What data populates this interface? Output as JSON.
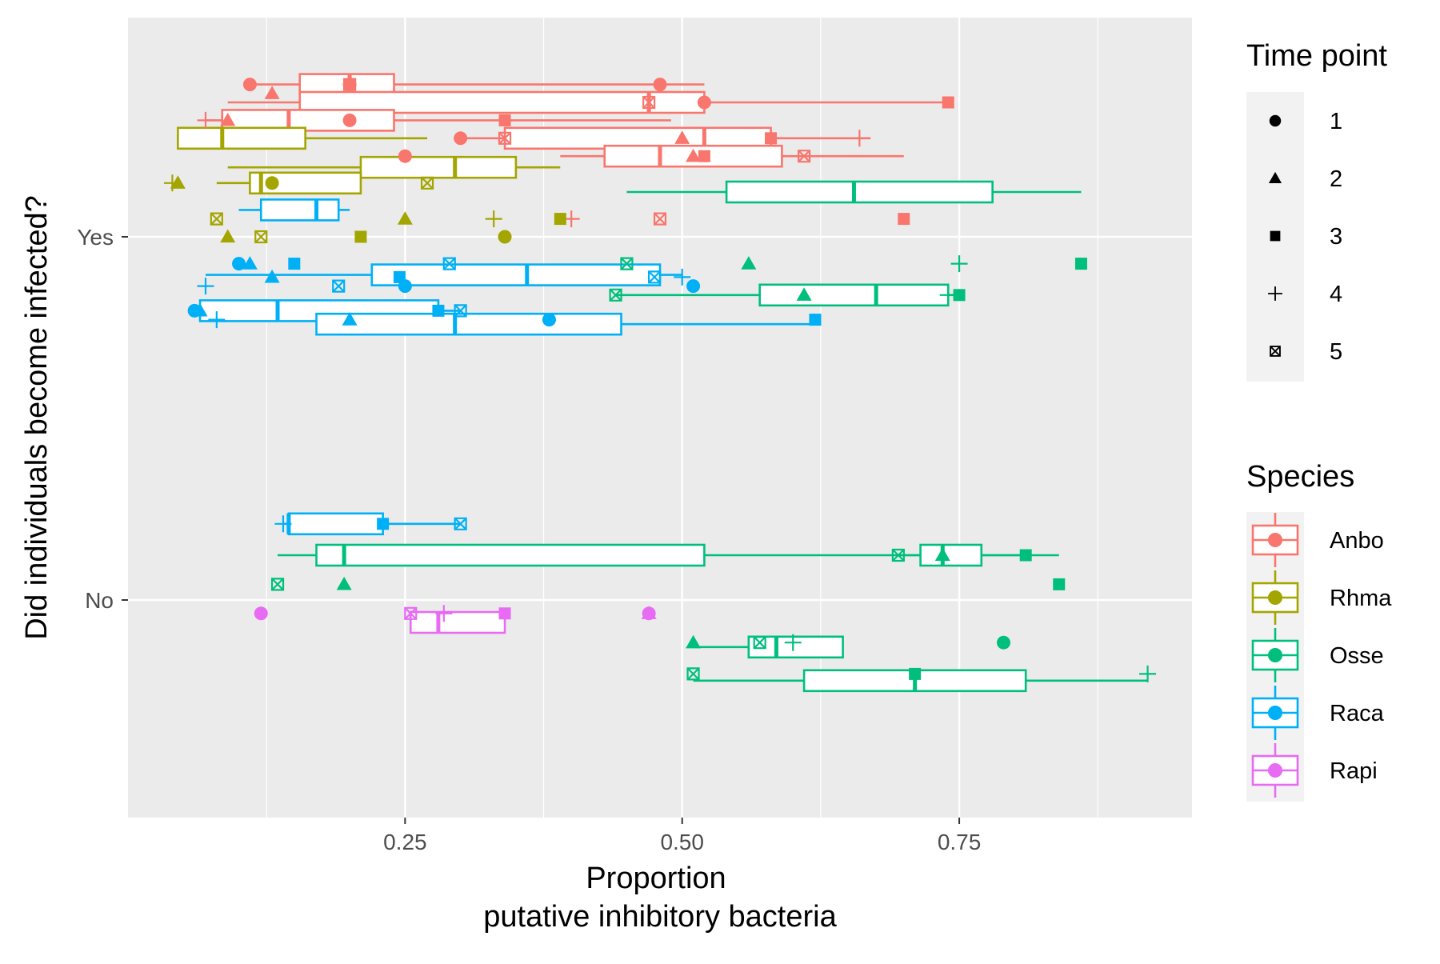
{
  "chart_data": {
    "type": "boxplot",
    "orientation": "horizontal",
    "xlabel_line1": "Proportion",
    "xlabel_line2": "putative inhibitory bacteria",
    "ylabel": "Did individuals become infected?",
    "xlim": [
      0.0,
      0.96
    ],
    "xticks": [
      0.25,
      0.5,
      0.75
    ],
    "xtick_labels": [
      "0.25",
      "0.50",
      "0.75"
    ],
    "categories": [
      "No",
      "Yes"
    ],
    "grid": true,
    "panel_background": "#ebebeb",
    "grid_color": "#ffffff",
    "legend_position": "right",
    "legend_time": {
      "title": "Time point",
      "entries": [
        {
          "label": "1",
          "shape": "circle"
        },
        {
          "label": "2",
          "shape": "triangle"
        },
        {
          "label": "3",
          "shape": "square"
        },
        {
          "label": "4",
          "shape": "plus"
        },
        {
          "label": "5",
          "shape": "square-x"
        }
      ]
    },
    "legend_species": {
      "title": "Species",
      "entries": [
        {
          "label": "Anbo",
          "color": "#F8766D"
        },
        {
          "label": "Rhma",
          "color": "#A3A500"
        },
        {
          "label": "Osse",
          "color": "#00BF7D"
        },
        {
          "label": "Raca",
          "color": "#00B0F6"
        },
        {
          "label": "Rapi",
          "color": "#E76BF3"
        }
      ]
    },
    "boxes": [
      {
        "species": "Anbo",
        "category": "Yes",
        "time": 1,
        "dodge": 0.34,
        "whisker_lo": 0.11,
        "q1": 0.155,
        "median": 0.2,
        "q3": 0.24,
        "whisker_hi": 0.52
      },
      {
        "species": "Anbo",
        "category": "Yes",
        "time": 2,
        "dodge": 0.3,
        "whisker_lo": 0.09,
        "q1": 0.155,
        "median": 0.47,
        "q3": 0.52,
        "whisker_hi": 0.74
      },
      {
        "species": "Anbo",
        "category": "Yes",
        "time": 3,
        "dodge": 0.26,
        "whisker_lo": 0.07,
        "q1": 0.085,
        "median": 0.145,
        "q3": 0.24,
        "whisker_hi": 0.49
      },
      {
        "species": "Anbo",
        "category": "Yes",
        "time": 4,
        "dodge": 0.22,
        "whisker_lo": 0.3,
        "q1": 0.34,
        "median": 0.52,
        "q3": 0.58,
        "whisker_hi": 0.67
      },
      {
        "species": "Anbo",
        "category": "Yes",
        "time": 5,
        "dodge": 0.18,
        "whisker_lo": 0.39,
        "q1": 0.43,
        "median": 0.48,
        "q3": 0.59,
        "whisker_hi": 0.7
      },
      {
        "species": "Rhma",
        "category": "Yes",
        "time": 1,
        "dodge": 0.22,
        "whisker_lo": 0.045,
        "q1": 0.045,
        "median": 0.085,
        "q3": 0.16,
        "whisker_hi": 0.27
      },
      {
        "species": "Rhma",
        "category": "Yes",
        "time": 2,
        "dodge": 0.155,
        "whisker_lo": 0.09,
        "q1": 0.21,
        "median": 0.295,
        "q3": 0.35,
        "whisker_hi": 0.39
      },
      {
        "species": "Rhma",
        "category": "Yes",
        "time": 3,
        "dodge": 0.12,
        "whisker_lo": 0.08,
        "q1": 0.11,
        "median": 0.12,
        "q3": 0.21,
        "whisker_hi": 0.21
      },
      {
        "species": "Osse",
        "category": "Yes",
        "time": 1,
        "dodge": 0.1,
        "whisker_lo": 0.45,
        "q1": 0.54,
        "median": 0.655,
        "q3": 0.78,
        "whisker_hi": 0.86
      },
      {
        "species": "Osse",
        "category": "Yes",
        "time": 2,
        "dodge": -0.13,
        "whisker_lo": 0.44,
        "q1": 0.57,
        "median": 0.675,
        "q3": 0.74,
        "whisker_hi": 0.75
      },
      {
        "species": "Raca",
        "category": "Yes",
        "time": 1,
        "dodge": 0.06,
        "whisker_lo": 0.1,
        "q1": 0.12,
        "median": 0.17,
        "q3": 0.19,
        "whisker_hi": 0.2
      },
      {
        "species": "Raca",
        "category": "Yes",
        "time": 2,
        "dodge": -0.085,
        "whisker_lo": 0.07,
        "q1": 0.22,
        "median": 0.36,
        "q3": 0.48,
        "whisker_hi": 0.5
      },
      {
        "species": "Raca",
        "category": "Yes",
        "time": 3,
        "dodge": -0.165,
        "whisker_lo": 0.06,
        "q1": 0.065,
        "median": 0.135,
        "q3": 0.28,
        "whisker_hi": 0.3
      },
      {
        "species": "Raca",
        "category": "Yes",
        "time": 4,
        "dodge": -0.195,
        "whisker_lo": 0.17,
        "q1": 0.17,
        "median": 0.295,
        "q3": 0.445,
        "whisker_hi": 0.62
      },
      {
        "species": "Raca",
        "category": "No",
        "time": 1,
        "dodge": 0.17,
        "whisker_lo": 0.14,
        "q1": 0.145,
        "median": 0.145,
        "q3": 0.23,
        "whisker_hi": 0.3
      },
      {
        "species": "Osse",
        "category": "No",
        "time": 1,
        "dodge": 0.1,
        "whisker_lo": 0.135,
        "q1": 0.17,
        "median": 0.195,
        "q3": 0.52,
        "whisker_hi": 0.84
      },
      {
        "species": "Osse",
        "category": "No",
        "time": 2,
        "dodge": 0.1,
        "whisker_lo": 0.695,
        "q1": 0.715,
        "median": 0.735,
        "q3": 0.77,
        "whisker_hi": 0.81
      },
      {
        "species": "Rapi",
        "category": "No",
        "time": 1,
        "dodge": -0.05,
        "whisker_lo": 0.255,
        "q1": 0.255,
        "median": 0.28,
        "q3": 0.34,
        "whisker_hi": 0.34
      },
      {
        "species": "Osse",
        "category": "No",
        "time": 3,
        "dodge": -0.105,
        "whisker_lo": 0.51,
        "q1": 0.56,
        "median": 0.585,
        "q3": 0.645,
        "whisker_hi": 0.645
      },
      {
        "species": "Osse",
        "category": "No",
        "time": 4,
        "dodge": -0.18,
        "whisker_lo": 0.51,
        "q1": 0.61,
        "median": 0.71,
        "q3": 0.81,
        "whisker_hi": 0.92
      }
    ],
    "points": [
      {
        "species": "Anbo",
        "category": "Yes",
        "time": 1,
        "x": 0.11,
        "dodge": 0.34
      },
      {
        "species": "Anbo",
        "category": "Yes",
        "time": 1,
        "x": 0.2,
        "dodge": 0.34
      },
      {
        "species": "Anbo",
        "category": "Yes",
        "time": 1,
        "x": 0.48,
        "dodge": 0.34
      },
      {
        "species": "Anbo",
        "category": "Yes",
        "time": 1,
        "x": 0.52,
        "dodge": 0.3
      },
      {
        "species": "Anbo",
        "category": "Yes",
        "time": 1,
        "x": 0.2,
        "dodge": 0.26
      },
      {
        "species": "Anbo",
        "category": "Yes",
        "time": 1,
        "x": 0.3,
        "dodge": 0.22
      },
      {
        "species": "Anbo",
        "category": "Yes",
        "time": 1,
        "x": 0.25,
        "dodge": 0.18
      },
      {
        "species": "Anbo",
        "category": "Yes",
        "time": 2,
        "x": 0.13,
        "dodge": 0.32
      },
      {
        "species": "Anbo",
        "category": "Yes",
        "time": 2,
        "x": 0.09,
        "dodge": 0.26
      },
      {
        "species": "Anbo",
        "category": "Yes",
        "time": 2,
        "x": 0.5,
        "dodge": 0.22
      },
      {
        "species": "Anbo",
        "category": "Yes",
        "time": 2,
        "x": 0.51,
        "dodge": 0.18
      },
      {
        "species": "Anbo",
        "category": "Yes",
        "time": 3,
        "x": 0.74,
        "dodge": 0.3
      },
      {
        "species": "Anbo",
        "category": "Yes",
        "time": 3,
        "x": 0.34,
        "dodge": 0.26
      },
      {
        "species": "Anbo",
        "category": "Yes",
        "time": 3,
        "x": 0.58,
        "dodge": 0.22
      },
      {
        "species": "Anbo",
        "category": "Yes",
        "time": 3,
        "x": 0.52,
        "dodge": 0.18
      },
      {
        "species": "Anbo",
        "category": "Yes",
        "time": 3,
        "x": 0.7,
        "dodge": 0.04
      },
      {
        "species": "Anbo",
        "category": "Yes",
        "time": 4,
        "x": 0.07,
        "dodge": 0.26
      },
      {
        "species": "Anbo",
        "category": "Yes",
        "time": 4,
        "x": 0.66,
        "dodge": 0.22
      },
      {
        "species": "Anbo",
        "category": "Yes",
        "time": 4,
        "x": 0.4,
        "dodge": 0.04
      },
      {
        "species": "Anbo",
        "category": "Yes",
        "time": 5,
        "x": 0.2,
        "dodge": 0.34
      },
      {
        "species": "Anbo",
        "category": "Yes",
        "time": 5,
        "x": 0.47,
        "dodge": 0.3
      },
      {
        "species": "Anbo",
        "category": "Yes",
        "time": 5,
        "x": 0.34,
        "dodge": 0.22
      },
      {
        "species": "Anbo",
        "category": "Yes",
        "time": 5,
        "x": 0.61,
        "dodge": 0.18
      },
      {
        "species": "Anbo",
        "category": "Yes",
        "time": 5,
        "x": 0.48,
        "dodge": 0.04
      },
      {
        "species": "Rhma",
        "category": "Yes",
        "time": 1,
        "x": 0.13,
        "dodge": 0.12
      },
      {
        "species": "Rhma",
        "category": "Yes",
        "time": 1,
        "x": 0.34,
        "dodge": 0.0
      },
      {
        "species": "Rhma",
        "category": "Yes",
        "time": 2,
        "x": 0.045,
        "dodge": 0.12
      },
      {
        "species": "Rhma",
        "category": "Yes",
        "time": 2,
        "x": 0.25,
        "dodge": 0.04
      },
      {
        "species": "Rhma",
        "category": "Yes",
        "time": 2,
        "x": 0.09,
        "dodge": 0.0
      },
      {
        "species": "Rhma",
        "category": "Yes",
        "time": 3,
        "x": 0.21,
        "dodge": 0.0
      },
      {
        "species": "Rhma",
        "category": "Yes",
        "time": 3,
        "x": 0.39,
        "dodge": 0.04
      },
      {
        "species": "Rhma",
        "category": "Yes",
        "time": 4,
        "x": 0.04,
        "dodge": 0.12
      },
      {
        "species": "Rhma",
        "category": "Yes",
        "time": 4,
        "x": 0.33,
        "dodge": 0.04
      },
      {
        "species": "Rhma",
        "category": "Yes",
        "time": 5,
        "x": 0.27,
        "dodge": 0.12
      },
      {
        "species": "Rhma",
        "category": "Yes",
        "time": 5,
        "x": 0.08,
        "dodge": 0.04
      },
      {
        "species": "Rhma",
        "category": "Yes",
        "time": 5,
        "x": 0.12,
        "dodge": 0.0
      },
      {
        "species": "Osse",
        "category": "Yes",
        "time": 2,
        "x": 0.56,
        "dodge": -0.06
      },
      {
        "species": "Osse",
        "category": "Yes",
        "time": 2,
        "x": 0.61,
        "dodge": -0.13
      },
      {
        "species": "Osse",
        "category": "Yes",
        "time": 3,
        "x": 0.86,
        "dodge": -0.06
      },
      {
        "species": "Osse",
        "category": "Yes",
        "time": 3,
        "x": 0.75,
        "dodge": -0.13
      },
      {
        "species": "Osse",
        "category": "Yes",
        "time": 4,
        "x": 0.75,
        "dodge": -0.06
      },
      {
        "species": "Osse",
        "category": "Yes",
        "time": 4,
        "x": 0.74,
        "dodge": -0.13
      },
      {
        "species": "Osse",
        "category": "Yes",
        "time": 5,
        "x": 0.45,
        "dodge": -0.06
      },
      {
        "species": "Osse",
        "category": "Yes",
        "time": 5,
        "x": 0.44,
        "dodge": -0.13
      },
      {
        "species": "Raca",
        "category": "Yes",
        "time": 1,
        "x": 0.1,
        "dodge": -0.06
      },
      {
        "species": "Raca",
        "category": "Yes",
        "time": 1,
        "x": 0.25,
        "dodge": -0.11
      },
      {
        "species": "Raca",
        "category": "Yes",
        "time": 1,
        "x": 0.51,
        "dodge": -0.11
      },
      {
        "species": "Raca",
        "category": "Yes",
        "time": 1,
        "x": 0.06,
        "dodge": -0.165
      },
      {
        "species": "Raca",
        "category": "Yes",
        "time": 1,
        "x": 0.38,
        "dodge": -0.185
      },
      {
        "species": "Raca",
        "category": "Yes",
        "time": 2,
        "x": 0.11,
        "dodge": -0.06
      },
      {
        "species": "Raca",
        "category": "Yes",
        "time": 2,
        "x": 0.13,
        "dodge": -0.09
      },
      {
        "species": "Raca",
        "category": "Yes",
        "time": 2,
        "x": 0.065,
        "dodge": -0.165
      },
      {
        "species": "Raca",
        "category": "Yes",
        "time": 2,
        "x": 0.2,
        "dodge": -0.185
      },
      {
        "species": "Raca",
        "category": "Yes",
        "time": 3,
        "x": 0.15,
        "dodge": -0.06
      },
      {
        "species": "Raca",
        "category": "Yes",
        "time": 3,
        "x": 0.245,
        "dodge": -0.09
      },
      {
        "species": "Raca",
        "category": "Yes",
        "time": 3,
        "x": 0.28,
        "dodge": -0.165
      },
      {
        "species": "Raca",
        "category": "Yes",
        "time": 3,
        "x": 0.62,
        "dodge": -0.185
      },
      {
        "species": "Raca",
        "category": "Yes",
        "time": 4,
        "x": 0.07,
        "dodge": -0.11
      },
      {
        "species": "Raca",
        "category": "Yes",
        "time": 4,
        "x": 0.5,
        "dodge": -0.09
      },
      {
        "species": "Raca",
        "category": "Yes",
        "time": 4,
        "x": 0.08,
        "dodge": -0.185
      },
      {
        "species": "Raca",
        "category": "Yes",
        "time": 5,
        "x": 0.29,
        "dodge": -0.06
      },
      {
        "species": "Raca",
        "category": "Yes",
        "time": 5,
        "x": 0.19,
        "dodge": -0.11
      },
      {
        "species": "Raca",
        "category": "Yes",
        "time": 5,
        "x": 0.475,
        "dodge": -0.09
      },
      {
        "species": "Raca",
        "category": "Yes",
        "time": 5,
        "x": 0.3,
        "dodge": -0.165
      },
      {
        "species": "Raca",
        "category": "No",
        "time": 3,
        "x": 0.23,
        "dodge": 0.17
      },
      {
        "species": "Raca",
        "category": "No",
        "time": 4,
        "x": 0.14,
        "dodge": 0.17
      },
      {
        "species": "Raca",
        "category": "No",
        "time": 5,
        "x": 0.3,
        "dodge": 0.17
      },
      {
        "species": "Osse",
        "category": "No",
        "time": 2,
        "x": 0.195,
        "dodge": 0.035
      },
      {
        "species": "Osse",
        "category": "No",
        "time": 3,
        "x": 0.84,
        "dodge": 0.035
      },
      {
        "species": "Osse",
        "category": "No",
        "time": 5,
        "x": 0.135,
        "dodge": 0.035
      },
      {
        "species": "Osse",
        "category": "No",
        "time": 2,
        "x": 0.735,
        "dodge": 0.1
      },
      {
        "species": "Osse",
        "category": "No",
        "time": 3,
        "x": 0.81,
        "dodge": 0.1
      },
      {
        "species": "Osse",
        "category": "No",
        "time": 5,
        "x": 0.695,
        "dodge": 0.1
      },
      {
        "species": "Osse",
        "category": "No",
        "time": 2,
        "x": 0.51,
        "dodge": -0.095
      },
      {
        "species": "Osse",
        "category": "No",
        "time": 5,
        "x": 0.57,
        "dodge": -0.095
      },
      {
        "species": "Osse",
        "category": "No",
        "time": 4,
        "x": 0.6,
        "dodge": -0.095
      },
      {
        "species": "Osse",
        "category": "No",
        "time": 1,
        "x": 0.79,
        "dodge": -0.095
      },
      {
        "species": "Osse",
        "category": "No",
        "time": 3,
        "x": 0.71,
        "dodge": -0.165
      },
      {
        "species": "Osse",
        "category": "No",
        "time": 5,
        "x": 0.51,
        "dodge": -0.165
      },
      {
        "species": "Osse",
        "category": "No",
        "time": 4,
        "x": 0.92,
        "dodge": -0.165
      },
      {
        "species": "Rapi",
        "category": "No",
        "time": 1,
        "x": 0.12,
        "dodge": -0.03
      },
      {
        "species": "Rapi",
        "category": "No",
        "time": 5,
        "x": 0.255,
        "dodge": -0.03
      },
      {
        "species": "Rapi",
        "category": "No",
        "time": 4,
        "x": 0.285,
        "dodge": -0.03
      },
      {
        "species": "Rapi",
        "category": "No",
        "time": 3,
        "x": 0.34,
        "dodge": -0.03
      },
      {
        "species": "Rapi",
        "category": "No",
        "time": 2,
        "x": 0.47,
        "dodge": -0.03
      },
      {
        "species": "Rapi",
        "category": "No",
        "time": 1,
        "x": 0.47,
        "dodge": -0.03
      }
    ]
  }
}
